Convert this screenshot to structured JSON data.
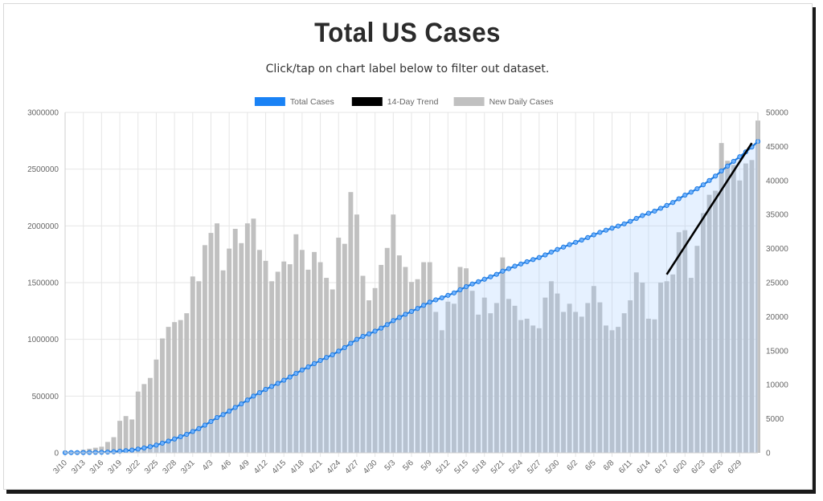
{
  "title": "Total US Cases",
  "subtitle": "Click/tap on chart label below to filter out dataset.",
  "colors": {
    "total": "#1f7be0",
    "total_fill": "#9cc8ff",
    "trend": "#000000",
    "daily": "#c0c0c0",
    "legend_total": "#1a82f5",
    "grid": "#e6e6e6"
  },
  "legend": [
    {
      "label": "Total Cases",
      "key": "total"
    },
    {
      "label": "14-Day Trend",
      "key": "trend"
    },
    {
      "label": "New Daily Cases",
      "key": "daily"
    }
  ],
  "chart_data": {
    "type": "bar",
    "legend_position": "top-center",
    "grid": true,
    "xlabels": [
      "3/10",
      "3/13",
      "3/16",
      "3/19",
      "3/22",
      "3/25",
      "3/28",
      "3/31",
      "4/3",
      "4/6",
      "4/9",
      "4/12",
      "4/15",
      "4/18",
      "4/21",
      "4/24",
      "4/27",
      "4/30",
      "5/3",
      "5/6",
      "5/9",
      "5/12",
      "5/15",
      "5/18",
      "5/21",
      "5/24",
      "5/27",
      "5/30",
      "6/2",
      "6/5",
      "6/8",
      "6/11",
      "6/14",
      "6/17",
      "6/20",
      "6/23",
      "6/26",
      "6/29"
    ],
    "y_left": {
      "min": 0,
      "max": 3000000,
      "ticks": [
        "0",
        "500000",
        "1000000",
        "1500000",
        "2000000",
        "2500000",
        "3000000"
      ]
    },
    "y_right": {
      "min": 0,
      "max": 50000,
      "ticks": [
        "0",
        "5000",
        "10000",
        "15000",
        "20000",
        "25000",
        "30000",
        "35000",
        "40000",
        "45000",
        "50000"
      ]
    },
    "series": [
      {
        "name": "New Daily Cases",
        "type": "bar",
        "axis": "right",
        "values": [
          0,
          0,
          150,
          450,
          600,
          750,
          900,
          1600,
          2300,
          4700,
          5400,
          4900,
          9000,
          10100,
          11000,
          13700,
          16800,
          18500,
          19200,
          19500,
          20500,
          25900,
          25200,
          30500,
          32300,
          33700,
          26800,
          30000,
          32900,
          30800,
          33700,
          34400,
          29800,
          28200,
          25200,
          26600,
          28100,
          27700,
          32100,
          29800,
          26900,
          29500,
          28000,
          25700,
          24000,
          31600,
          30700,
          38300,
          35000,
          26000,
          22400,
          24200,
          27600,
          30100,
          35000,
          29000,
          27300,
          25100,
          25500,
          28000,
          28000,
          20700,
          18000,
          22200,
          21900,
          27300,
          27100,
          23800,
          20300,
          22800,
          20500,
          22000,
          28700,
          22600,
          21600,
          19500,
          19700,
          18700,
          18300,
          22800,
          25200,
          23400,
          20700,
          21900,
          20700,
          20000,
          22000,
          24500,
          22100,
          18700,
          18000,
          18500,
          20500,
          22400,
          26500,
          25000,
          19700,
          19600,
          25000,
          25200,
          26200,
          32400,
          32700,
          25700,
          30400,
          35200,
          37900,
          38500,
          45500,
          42900,
          42300,
          40000,
          42500,
          43000,
          48800
        ]
      },
      {
        "name": "Total Cases",
        "type": "line",
        "axis": "left",
        "values": [
          1000,
          2000,
          2200,
          2600,
          3000,
          4000,
          5000,
          6500,
          9500,
          14000,
          19000,
          24000,
          33000,
          43000,
          54000,
          68000,
          85000,
          103000,
          122000,
          142000,
          163000,
          188000,
          213000,
          244000,
          276000,
          311000,
          337000,
          367000,
          400000,
          431000,
          465000,
          500000,
          530000,
          559000,
          585000,
          612000,
          640000,
          668000,
          700000,
          730000,
          757000,
          786000,
          814000,
          840000,
          864000,
          896000,
          927000,
          965000,
          1000000,
          1026000,
          1048000,
          1072000,
          1099000,
          1130000,
          1165000,
          1193000,
          1221000,
          1246000,
          1272000,
          1300000,
          1328000,
          1348000,
          1366000,
          1388000,
          1409000,
          1437000,
          1464000,
          1488000,
          1508000,
          1530000,
          1551000,
          1573000,
          1601000,
          1623000,
          1645000,
          1664000,
          1684000,
          1703000,
          1721000,
          1744000,
          1769000,
          1792000,
          1813000,
          1835000,
          1855000,
          1875000,
          1897000,
          1921000,
          1943000,
          1962000,
          1980000,
          1998000,
          2018000,
          2040000,
          2066000,
          2091000,
          2111000,
          2130000,
          2155000,
          2180000,
          2206000,
          2239000,
          2271000,
          2297000,
          2327000,
          2362000,
          2400000,
          2439000,
          2484000,
          2527000,
          2569000,
          2609000,
          2652000,
          2695000,
          2744000
        ]
      },
      {
        "name": "14-Day Trend",
        "type": "line",
        "axis": "right",
        "points": [
          [
            99,
            26200
          ],
          [
            113,
            45500
          ]
        ]
      }
    ]
  }
}
